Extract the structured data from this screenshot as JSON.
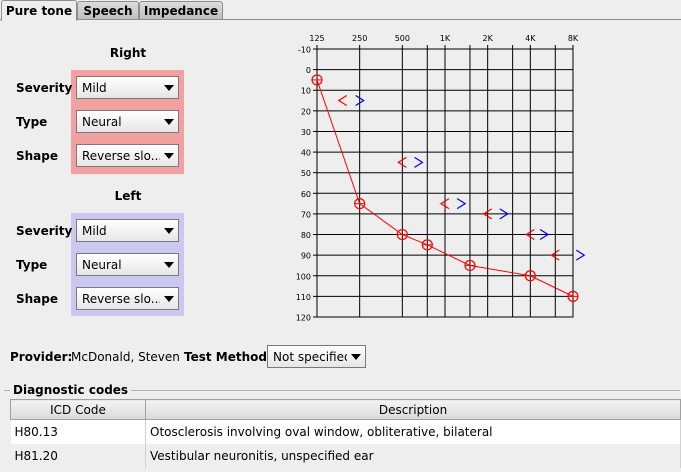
{
  "tabs": [
    {
      "label": "Pure tone",
      "active": true
    },
    {
      "label": "Speech",
      "active": false
    },
    {
      "label": "Impedance",
      "active": false
    }
  ],
  "right": {
    "title": "Right",
    "color": "#f2a0a0",
    "severity": {
      "label": "Severity",
      "value": "Mild"
    },
    "type": {
      "label": "Type",
      "value": "Neural"
    },
    "shape": {
      "label": "Shape",
      "value": "Reverse slo..."
    }
  },
  "left": {
    "title": "Left",
    "color": "#c8c8f0",
    "severity": {
      "label": "Severity",
      "value": "Mild"
    },
    "type": {
      "label": "Type",
      "value": "Neural"
    },
    "shape": {
      "label": "Shape",
      "value": "Reverse slo..."
    }
  },
  "chart_data": {
    "type": "line",
    "x_tick_labels": [
      "125",
      "250",
      "500",
      "1K",
      "2K",
      "4K",
      "8K"
    ],
    "y_tick_labels": [
      "-10",
      "0",
      "10",
      "20",
      "30",
      "40",
      "50",
      "60",
      "70",
      "80",
      "90",
      "100",
      "110",
      "120"
    ],
    "ylim": [
      -10,
      120
    ],
    "y_inverted": true,
    "series": [
      {
        "marker": "circle",
        "color": "#ff0000",
        "x": [
          125,
          250,
          500,
          750,
          1500,
          4000,
          8000
        ],
        "y": [
          5,
          65,
          80,
          85,
          95,
          100,
          110
        ]
      },
      {
        "marker": "<",
        "color": "#ff0000",
        "x": [
          190,
          500,
          1000,
          2000,
          4000,
          6000
        ],
        "y": [
          15,
          45,
          65,
          70,
          80,
          90
        ]
      },
      {
        "marker": ">",
        "color": "#0000ff",
        "x": [
          250,
          650,
          1300,
          2600,
          5000,
          9000
        ],
        "y": [
          15,
          45,
          65,
          70,
          80,
          90
        ]
      }
    ]
  },
  "provider": {
    "label": "Provider:",
    "value": "McDonald, Steven"
  },
  "test_method": {
    "label": "Test Method:",
    "value": "Not specified"
  },
  "diagnostic": {
    "title": "Diagnostic codes",
    "columns": [
      "ICD Code",
      "Description"
    ],
    "rows": [
      {
        "code": "H80.13",
        "description": "Otosclerosis involving oval window, obliterative, bilateral"
      },
      {
        "code": "H81.20",
        "description": "Vestibular neuronitis, unspecified ear"
      }
    ]
  }
}
